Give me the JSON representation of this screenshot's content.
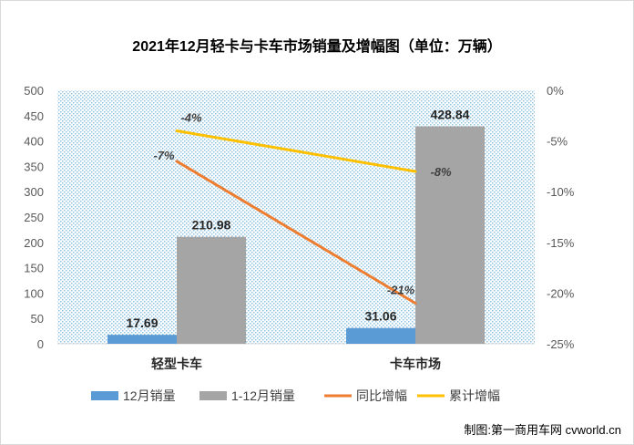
{
  "chart_data": {
    "type": "bar",
    "title": "2021年12月轻卡与卡车市场销量及增幅图（单位：万辆）",
    "categories": [
      "轻型卡车",
      "卡车市场"
    ],
    "series": [
      {
        "name": "12月销量",
        "kind": "bar",
        "axis": "left",
        "color": "#5b9bd5",
        "values": [
          17.69,
          31.06
        ],
        "labels": [
          "17.69",
          "31.06"
        ]
      },
      {
        "name": "1-12月销量",
        "kind": "bar",
        "axis": "left",
        "color": "#a5a5a5",
        "values": [
          210.98,
          428.84
        ],
        "labels": [
          "210.98",
          "428.84"
        ]
      },
      {
        "name": "同比增幅",
        "kind": "line",
        "axis": "right",
        "color": "#ed7d31",
        "values": [
          -7,
          -21
        ],
        "labels": [
          "-7%",
          "-21%"
        ]
      },
      {
        "name": "累计增幅",
        "kind": "line",
        "axis": "right",
        "color": "#ffc000",
        "values": [
          -4,
          -8
        ],
        "labels": [
          "-4%",
          "-8%"
        ]
      }
    ],
    "left_axis": {
      "ylim": [
        0,
        500
      ],
      "ticks": [
        "0",
        "50",
        "100",
        "150",
        "200",
        "250",
        "300",
        "350",
        "400",
        "450",
        "500"
      ]
    },
    "right_axis": {
      "ylim": [
        -25,
        0
      ],
      "ticks": [
        "0%",
        "-5%",
        "-10%",
        "-15%",
        "-20%",
        "-25%"
      ]
    },
    "grid": false,
    "plot_background": "dotted-blue",
    "legend_position": "bottom"
  },
  "source": "制图:第一商用车网 cvworld.cn"
}
